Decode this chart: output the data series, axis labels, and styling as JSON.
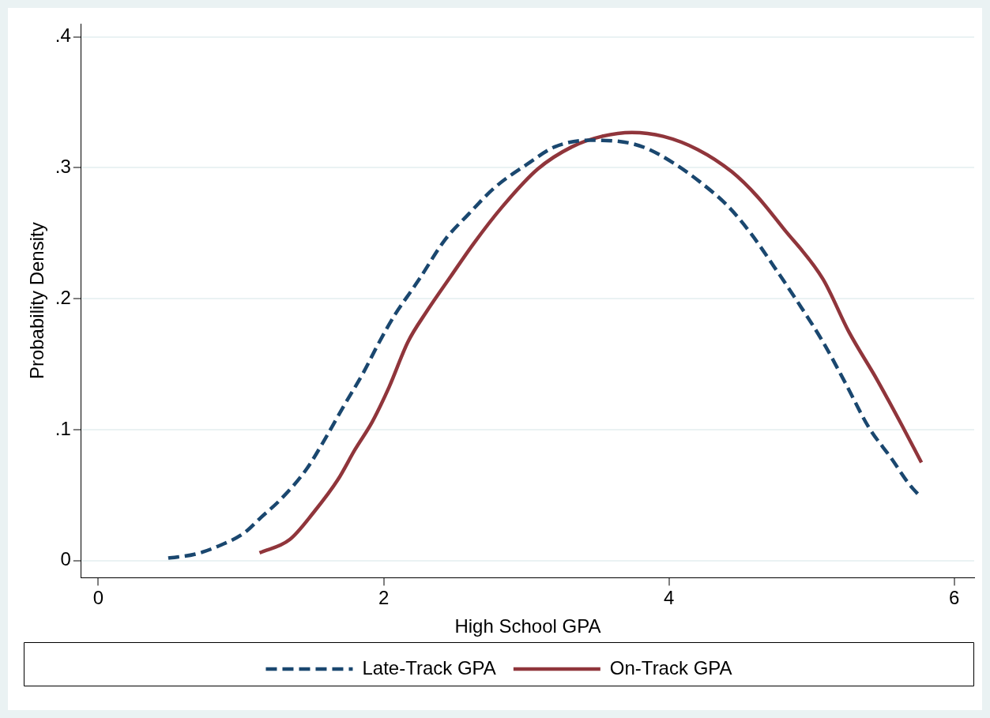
{
  "chart_data": {
    "type": "line",
    "xlabel": "High School GPA",
    "ylabel": "Probability Density",
    "xlim": [
      -0.12,
      6.14
    ],
    "ylim": [
      -0.013,
      0.41
    ],
    "xticks": [
      0,
      2,
      4,
      6
    ],
    "yticks": [
      0,
      {
        "value": 0.1,
        "label": ".1"
      },
      {
        "value": 0.2,
        "label": ".2"
      },
      {
        "value": 0.3,
        "label": ".3"
      },
      {
        "value": 0.4,
        "label": ".4"
      }
    ],
    "grid": "y",
    "legend": "bottom",
    "marker": "none",
    "series": [
      {
        "name": "Late-Track GPA",
        "color": "#1a476f",
        "line_style": "dashed",
        "x": [
          0.49,
          0.68,
          0.86,
          1.02,
          1.14,
          1.28,
          1.46,
          1.6,
          1.72,
          1.86,
          1.96,
          2.08,
          2.2,
          2.25,
          2.43,
          2.59,
          2.78,
          3.01,
          3.2,
          3.44,
          3.66,
          3.84,
          4.04,
          4.22,
          4.42,
          4.58,
          4.74,
          4.9,
          5.08,
          5.24,
          5.4,
          5.56,
          5.68,
          5.77
        ],
        "values": [
          0.002,
          0.005,
          0.012,
          0.021,
          0.033,
          0.047,
          0.07,
          0.095,
          0.118,
          0.144,
          0.165,
          0.188,
          0.207,
          0.215,
          0.245,
          0.264,
          0.285,
          0.303,
          0.316,
          0.321,
          0.32,
          0.315,
          0.303,
          0.289,
          0.27,
          0.249,
          0.224,
          0.198,
          0.167,
          0.135,
          0.102,
          0.078,
          0.059,
          0.048
        ]
      },
      {
        "name": "On-Track GPA",
        "color": "#90353b",
        "line_style": "solid",
        "x": [
          1.13,
          1.34,
          1.51,
          1.68,
          1.8,
          1.92,
          2.04,
          2.17,
          2.3,
          2.47,
          2.63,
          2.83,
          3.08,
          3.32,
          3.53,
          3.74,
          3.96,
          4.2,
          4.44,
          4.62,
          4.8,
          5.08,
          5.26,
          5.46,
          5.64,
          5.77
        ],
        "values": [
          0.006,
          0.016,
          0.037,
          0.062,
          0.085,
          0.106,
          0.133,
          0.167,
          0.19,
          0.217,
          0.242,
          0.27,
          0.299,
          0.316,
          0.324,
          0.327,
          0.324,
          0.314,
          0.297,
          0.278,
          0.254,
          0.215,
          0.175,
          0.138,
          0.102,
          0.075
        ]
      }
    ]
  }
}
